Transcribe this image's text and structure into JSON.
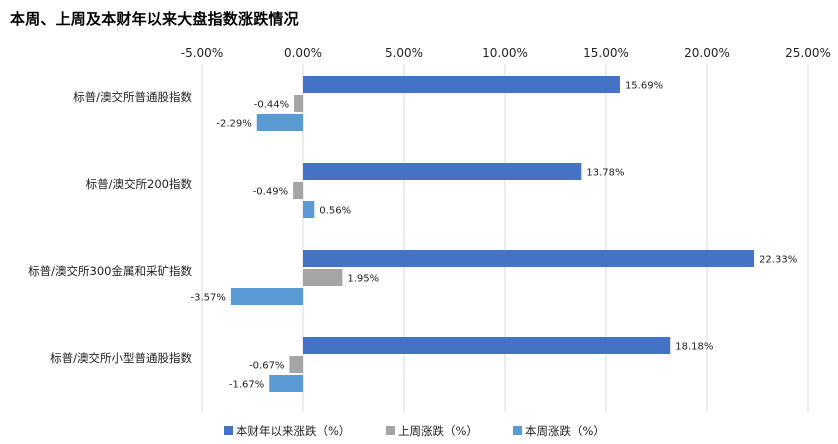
{
  "chart_data": {
    "type": "bar",
    "orientation": "horizontal",
    "title": "本周、上周及本财年以来大盘指数涨跌情况",
    "categories": [
      "标普/澳交所普通股指数",
      "标普/澳交所200指数",
      "标普/澳交所300金属和采矿指数",
      "标普/澳交所小型普通股指数"
    ],
    "series": [
      {
        "name": "本财年以来涨跌（%）",
        "color": "#4472c4",
        "values": [
          15.69,
          13.78,
          22.33,
          18.18
        ]
      },
      {
        "name": "上周涨跌（%）",
        "color": "#a5a5a5",
        "values": [
          -0.44,
          -0.49,
          1.95,
          -0.67
        ]
      },
      {
        "name": "本周涨跌（%）",
        "color": "#5b9bd5",
        "values": [
          -2.29,
          0.56,
          -3.57,
          -1.67
        ]
      }
    ],
    "data_labels": [
      [
        "15.69%",
        "13.78%",
        "22.33%",
        "18.18%"
      ],
      [
        "-0.44%",
        "-0.49%",
        "1.95%",
        "-0.67%"
      ],
      [
        "-2.29%",
        "0.56%",
        "-3.57%",
        "-1.67%"
      ]
    ],
    "xlim": [
      -5,
      25
    ],
    "xticks": [
      -5,
      0,
      5,
      10,
      15,
      20,
      25
    ],
    "xtick_labels": [
      "-5.00%",
      "0.00%",
      "5.00%",
      "10.00%",
      "15.00%",
      "20.00%",
      "25.00%"
    ],
    "axis_position": "top",
    "grid": true,
    "legend_position": "bottom"
  }
}
